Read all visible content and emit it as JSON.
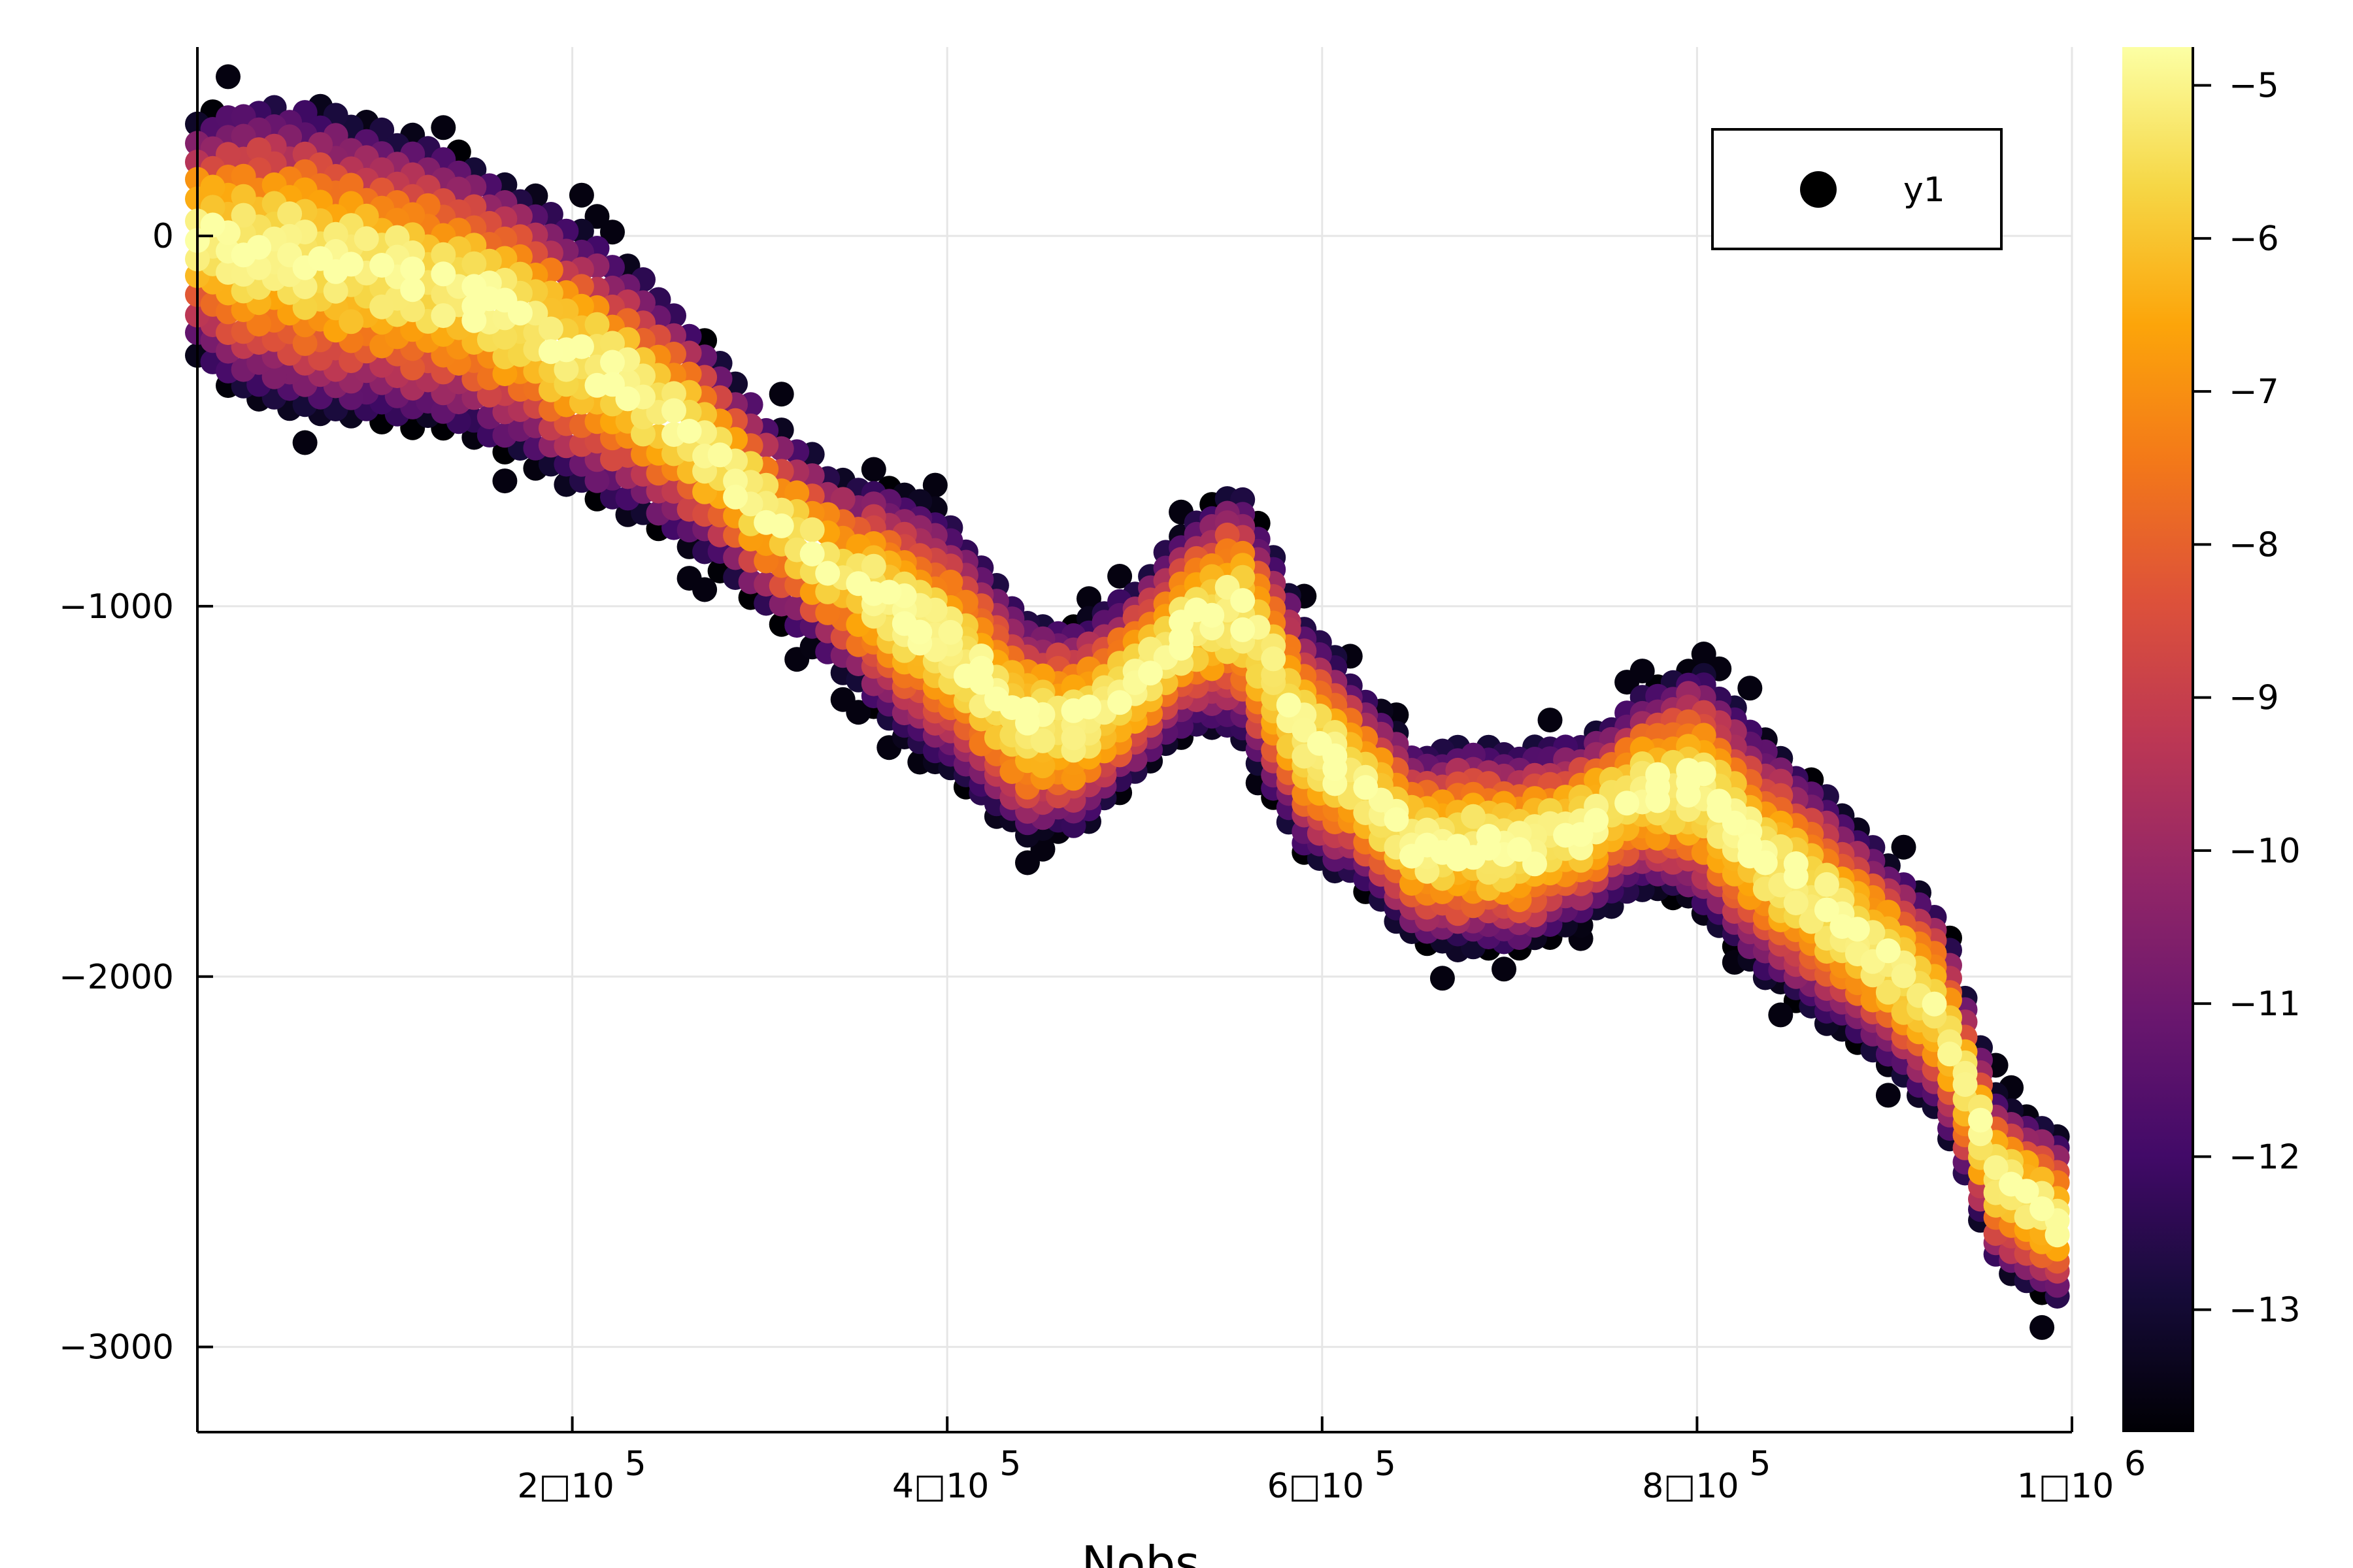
{
  "chart_data": {
    "type": "scatter",
    "title": "",
    "xlabel": "Nobs",
    "ylabel": "",
    "xlim": [
      0,
      1000000
    ],
    "ylim": [
      -3230,
      510
    ],
    "grid": true,
    "legend": {
      "position": "top-right",
      "entries": [
        {
          "label": "y1",
          "color": "#000000"
        }
      ]
    },
    "x_ticks": [
      {
        "value": 200000,
        "label": "2□10",
        "exp": "5"
      },
      {
        "value": 400000,
        "label": "4□10",
        "exp": "5"
      },
      {
        "value": 600000,
        "label": "6□10",
        "exp": "5"
      },
      {
        "value": 800000,
        "label": "8□10",
        "exp": "5"
      },
      {
        "value": 1000000,
        "label": "1□10",
        "exp": "6"
      }
    ],
    "y_ticks": [
      {
        "value": 0,
        "label": "0"
      },
      {
        "value": -1000,
        "label": "−1000"
      },
      {
        "value": -2000,
        "label": "−2000"
      },
      {
        "value": -3000,
        "label": "−3000"
      }
    ],
    "colorbar": {
      "colormap": "inferno",
      "range": [
        -13.8,
        -4.75
      ],
      "ticks": [
        {
          "value": -5,
          "label": "−5"
        },
        {
          "value": -6,
          "label": "−6"
        },
        {
          "value": -7,
          "label": "−7"
        },
        {
          "value": -8,
          "label": "−8"
        },
        {
          "value": -9,
          "label": "−9"
        },
        {
          "value": -10,
          "label": "−10"
        },
        {
          "value": -11,
          "label": "−11"
        },
        {
          "value": -12,
          "label": "−12"
        },
        {
          "value": -13,
          "label": "−13"
        }
      ]
    },
    "series": [
      {
        "name": "y1",
        "description": "Points on a grid of x positions every 8200 Nobs; each column spans a band in y; marker color encodes z (log density), brightest at band center.",
        "x_step": 8200,
        "band_profile": {
          "x": [
            0,
            20000,
            60000,
            100000,
            140000,
            180000,
            220000,
            260000,
            300000,
            340000,
            370000,
            400000,
            440000,
            470000,
            500000,
            530000,
            555000,
            590000,
            620000,
            650000,
            680000,
            710000,
            740000,
            770000,
            800000,
            830000,
            860000,
            900000,
            930000,
            960000,
            1000000
          ],
          "center": [
            0,
            -30,
            -60,
            -100,
            -150,
            -250,
            -380,
            -520,
            -730,
            -900,
            -1000,
            -1100,
            -1320,
            -1330,
            -1200,
            -1050,
            -1000,
            -1350,
            -1480,
            -1650,
            -1650,
            -1650,
            -1600,
            -1500,
            -1480,
            -1650,
            -1780,
            -1950,
            -2100,
            -2550,
            -2680
          ],
          "half_width": [
            320,
            400,
            420,
            400,
            380,
            370,
            350,
            310,
            270,
            260,
            320,
            350,
            300,
            280,
            260,
            280,
            340,
            320,
            270,
            260,
            280,
            270,
            250,
            260,
            330,
            330,
            320,
            280,
            280,
            230,
            230
          ]
        },
        "z_center": -4.8,
        "z_edge": -13.6
      }
    ]
  }
}
